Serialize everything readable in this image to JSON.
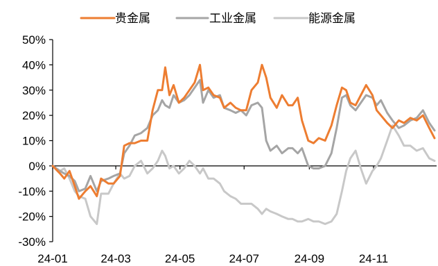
{
  "chart_data": {
    "type": "line",
    "title": "",
    "xlabel": "",
    "ylabel": "",
    "ylim": [
      -30,
      50
    ],
    "yticks": [
      -30,
      -20,
      -10,
      0,
      10,
      20,
      30,
      40,
      50
    ],
    "ytick_labels": [
      "-30%",
      "-20%",
      "-10%",
      "0%",
      "10%",
      "20%",
      "30%",
      "40%",
      "50%"
    ],
    "xlim": [
      "2024-01-01",
      "2024-12-31"
    ],
    "xticks": [
      "2024-01-01",
      "2024-03-01",
      "2024-05-01",
      "2024-07-01",
      "2024-09-01",
      "2024-11-01"
    ],
    "xtick_labels": [
      "24-01",
      "24-03",
      "24-05",
      "24-07",
      "24-09",
      "24-11"
    ],
    "grid": false,
    "legend_position": "top",
    "series": [
      {
        "name": "贵金属",
        "color": "#ED7D31",
        "points": [
          [
            "2024-01-01",
            0
          ],
          [
            "2024-01-08",
            -3
          ],
          [
            "2024-01-12",
            -5
          ],
          [
            "2024-01-17",
            -2
          ],
          [
            "2024-01-22",
            -8
          ],
          [
            "2024-01-26",
            -13
          ],
          [
            "2024-02-01",
            -10
          ],
          [
            "2024-02-06",
            -8
          ],
          [
            "2024-02-12",
            -12
          ],
          [
            "2024-02-16",
            -5
          ],
          [
            "2024-02-23",
            -7
          ],
          [
            "2024-02-28",
            -7
          ],
          [
            "2024-03-05",
            -4
          ],
          [
            "2024-03-09",
            8
          ],
          [
            "2024-03-14",
            9
          ],
          [
            "2024-03-19",
            9
          ],
          [
            "2024-03-25",
            10
          ],
          [
            "2024-03-31",
            10
          ],
          [
            "2024-04-05",
            22
          ],
          [
            "2024-04-10",
            30
          ],
          [
            "2024-04-14",
            30
          ],
          [
            "2024-04-17",
            39
          ],
          [
            "2024-04-21",
            28
          ],
          [
            "2024-04-25",
            32
          ],
          [
            "2024-04-30",
            25
          ],
          [
            "2024-05-05",
            27
          ],
          [
            "2024-05-10",
            30
          ],
          [
            "2024-05-15",
            33
          ],
          [
            "2024-05-20",
            40
          ],
          [
            "2024-05-23",
            30
          ],
          [
            "2024-05-28",
            31
          ],
          [
            "2024-06-02",
            28
          ],
          [
            "2024-06-08",
            27
          ],
          [
            "2024-06-12",
            23
          ],
          [
            "2024-06-18",
            25
          ],
          [
            "2024-06-23",
            23
          ],
          [
            "2024-06-28",
            22
          ],
          [
            "2024-07-03",
            22
          ],
          [
            "2024-07-08",
            30
          ],
          [
            "2024-07-14",
            33
          ],
          [
            "2024-07-18",
            40
          ],
          [
            "2024-07-22",
            35
          ],
          [
            "2024-07-26",
            27
          ],
          [
            "2024-08-01",
            23
          ],
          [
            "2024-08-06",
            28
          ],
          [
            "2024-08-12",
            24
          ],
          [
            "2024-08-16",
            24
          ],
          [
            "2024-08-21",
            27
          ],
          [
            "2024-08-25",
            18
          ],
          [
            "2024-08-31",
            10
          ],
          [
            "2024-09-05",
            9
          ],
          [
            "2024-09-10",
            11
          ],
          [
            "2024-09-16",
            10
          ],
          [
            "2024-09-22",
            16
          ],
          [
            "2024-09-27",
            24
          ],
          [
            "2024-10-02",
            31
          ],
          [
            "2024-10-06",
            30
          ],
          [
            "2024-10-10",
            25
          ],
          [
            "2024-10-15",
            24
          ],
          [
            "2024-10-20",
            28
          ],
          [
            "2024-10-25",
            32
          ],
          [
            "2024-10-31",
            28
          ],
          [
            "2024-11-04",
            22
          ],
          [
            "2024-11-08",
            20
          ],
          [
            "2024-11-14",
            17
          ],
          [
            "2024-11-19",
            15
          ],
          [
            "2024-11-25",
            18
          ],
          [
            "2024-11-30",
            17
          ],
          [
            "2024-12-06",
            19
          ],
          [
            "2024-12-12",
            18
          ],
          [
            "2024-12-18",
            20
          ],
          [
            "2024-12-24",
            15
          ],
          [
            "2024-12-29",
            11
          ]
        ]
      },
      {
        "name": "工业金属",
        "color": "#A5A5A5",
        "points": [
          [
            "2024-01-01",
            0
          ],
          [
            "2024-01-08",
            -2
          ],
          [
            "2024-01-12",
            -3
          ],
          [
            "2024-01-17",
            -4
          ],
          [
            "2024-01-22",
            -6
          ],
          [
            "2024-01-26",
            -10
          ],
          [
            "2024-02-01",
            -9
          ],
          [
            "2024-02-06",
            -4
          ],
          [
            "2024-02-12",
            -10
          ],
          [
            "2024-02-16",
            -6
          ],
          [
            "2024-02-23",
            -5
          ],
          [
            "2024-02-28",
            -4
          ],
          [
            "2024-03-05",
            -3
          ],
          [
            "2024-03-09",
            5
          ],
          [
            "2024-03-14",
            8
          ],
          [
            "2024-03-19",
            12
          ],
          [
            "2024-03-25",
            13
          ],
          [
            "2024-03-31",
            15
          ],
          [
            "2024-04-05",
            20
          ],
          [
            "2024-04-10",
            22
          ],
          [
            "2024-04-14",
            26
          ],
          [
            "2024-04-17",
            24
          ],
          [
            "2024-04-21",
            23
          ],
          [
            "2024-04-25",
            28
          ],
          [
            "2024-04-30",
            25
          ],
          [
            "2024-05-05",
            26
          ],
          [
            "2024-05-10",
            28
          ],
          [
            "2024-05-15",
            31
          ],
          [
            "2024-05-20",
            34
          ],
          [
            "2024-05-23",
            25
          ],
          [
            "2024-05-28",
            30
          ],
          [
            "2024-06-02",
            27
          ],
          [
            "2024-06-08",
            28
          ],
          [
            "2024-06-12",
            23
          ],
          [
            "2024-06-18",
            22
          ],
          [
            "2024-06-23",
            21
          ],
          [
            "2024-06-28",
            22
          ],
          [
            "2024-07-03",
            20
          ],
          [
            "2024-07-08",
            24
          ],
          [
            "2024-07-14",
            25
          ],
          [
            "2024-07-18",
            23
          ],
          [
            "2024-07-22",
            10
          ],
          [
            "2024-07-26",
            6
          ],
          [
            "2024-08-01",
            8
          ],
          [
            "2024-08-06",
            5
          ],
          [
            "2024-08-12",
            7
          ],
          [
            "2024-08-16",
            7
          ],
          [
            "2024-08-21",
            5
          ],
          [
            "2024-08-25",
            7
          ],
          [
            "2024-08-31",
            0
          ],
          [
            "2024-09-05",
            -1
          ],
          [
            "2024-09-10",
            -1
          ],
          [
            "2024-09-16",
            0
          ],
          [
            "2024-09-22",
            5
          ],
          [
            "2024-09-27",
            15
          ],
          [
            "2024-10-02",
            27
          ],
          [
            "2024-10-06",
            28
          ],
          [
            "2024-10-10",
            24
          ],
          [
            "2024-10-15",
            22
          ],
          [
            "2024-10-20",
            25
          ],
          [
            "2024-10-25",
            28
          ],
          [
            "2024-10-31",
            27
          ],
          [
            "2024-11-04",
            24
          ],
          [
            "2024-11-08",
            26
          ],
          [
            "2024-11-14",
            21
          ],
          [
            "2024-11-19",
            18
          ],
          [
            "2024-11-25",
            15
          ],
          [
            "2024-11-30",
            16
          ],
          [
            "2024-12-06",
            18
          ],
          [
            "2024-12-12",
            19
          ],
          [
            "2024-12-18",
            22
          ],
          [
            "2024-12-24",
            17
          ],
          [
            "2024-12-29",
            14
          ]
        ]
      },
      {
        "name": "能源金属",
        "color": "#C8C8C8",
        "points": [
          [
            "2024-01-01",
            0
          ],
          [
            "2024-01-08",
            -2
          ],
          [
            "2024-01-12",
            -1
          ],
          [
            "2024-01-17",
            -5
          ],
          [
            "2024-01-22",
            -10
          ],
          [
            "2024-01-26",
            -12
          ],
          [
            "2024-02-01",
            -13
          ],
          [
            "2024-02-06",
            -20
          ],
          [
            "2024-02-12",
            -23
          ],
          [
            "2024-02-16",
            -11
          ],
          [
            "2024-02-23",
            -11
          ],
          [
            "2024-02-28",
            -7
          ],
          [
            "2024-03-05",
            -3
          ],
          [
            "2024-03-09",
            -5
          ],
          [
            "2024-03-14",
            -4
          ],
          [
            "2024-03-19",
            0
          ],
          [
            "2024-03-25",
            2
          ],
          [
            "2024-03-31",
            -3
          ],
          [
            "2024-04-05",
            -1
          ],
          [
            "2024-04-10",
            2
          ],
          [
            "2024-04-14",
            6
          ],
          [
            "2024-04-17",
            4
          ],
          [
            "2024-04-21",
            -1
          ],
          [
            "2024-04-25",
            0
          ],
          [
            "2024-04-30",
            -3
          ],
          [
            "2024-05-05",
            -1
          ],
          [
            "2024-05-10",
            2
          ],
          [
            "2024-05-15",
            0
          ],
          [
            "2024-05-20",
            -3
          ],
          [
            "2024-05-23",
            -1
          ],
          [
            "2024-05-28",
            -5
          ],
          [
            "2024-06-02",
            -5
          ],
          [
            "2024-06-08",
            -7
          ],
          [
            "2024-06-12",
            -10
          ],
          [
            "2024-06-18",
            -12
          ],
          [
            "2024-06-23",
            -13
          ],
          [
            "2024-06-28",
            -15
          ],
          [
            "2024-07-03",
            -15
          ],
          [
            "2024-07-08",
            -15
          ],
          [
            "2024-07-14",
            -17
          ],
          [
            "2024-07-18",
            -19
          ],
          [
            "2024-07-22",
            -17
          ],
          [
            "2024-07-26",
            -18
          ],
          [
            "2024-08-01",
            -19
          ],
          [
            "2024-08-06",
            -20
          ],
          [
            "2024-08-12",
            -21
          ],
          [
            "2024-08-16",
            -21
          ],
          [
            "2024-08-21",
            -22
          ],
          [
            "2024-08-25",
            -22
          ],
          [
            "2024-08-31",
            -21
          ],
          [
            "2024-09-05",
            -22
          ],
          [
            "2024-09-10",
            -22
          ],
          [
            "2024-09-16",
            -23
          ],
          [
            "2024-09-22",
            -22
          ],
          [
            "2024-09-27",
            -19
          ],
          [
            "2024-10-02",
            -10
          ],
          [
            "2024-10-06",
            -2
          ],
          [
            "2024-10-10",
            3
          ],
          [
            "2024-10-15",
            6
          ],
          [
            "2024-10-20",
            -1
          ],
          [
            "2024-10-25",
            -7
          ],
          [
            "2024-10-31",
            -2
          ],
          [
            "2024-11-04",
            0
          ],
          [
            "2024-11-08",
            3
          ],
          [
            "2024-11-14",
            10
          ],
          [
            "2024-11-19",
            16
          ],
          [
            "2024-11-25",
            12
          ],
          [
            "2024-11-30",
            8
          ],
          [
            "2024-12-06",
            8
          ],
          [
            "2024-12-12",
            6
          ],
          [
            "2024-12-18",
            7
          ],
          [
            "2024-12-24",
            3
          ],
          [
            "2024-12-29",
            2
          ]
        ]
      }
    ]
  }
}
